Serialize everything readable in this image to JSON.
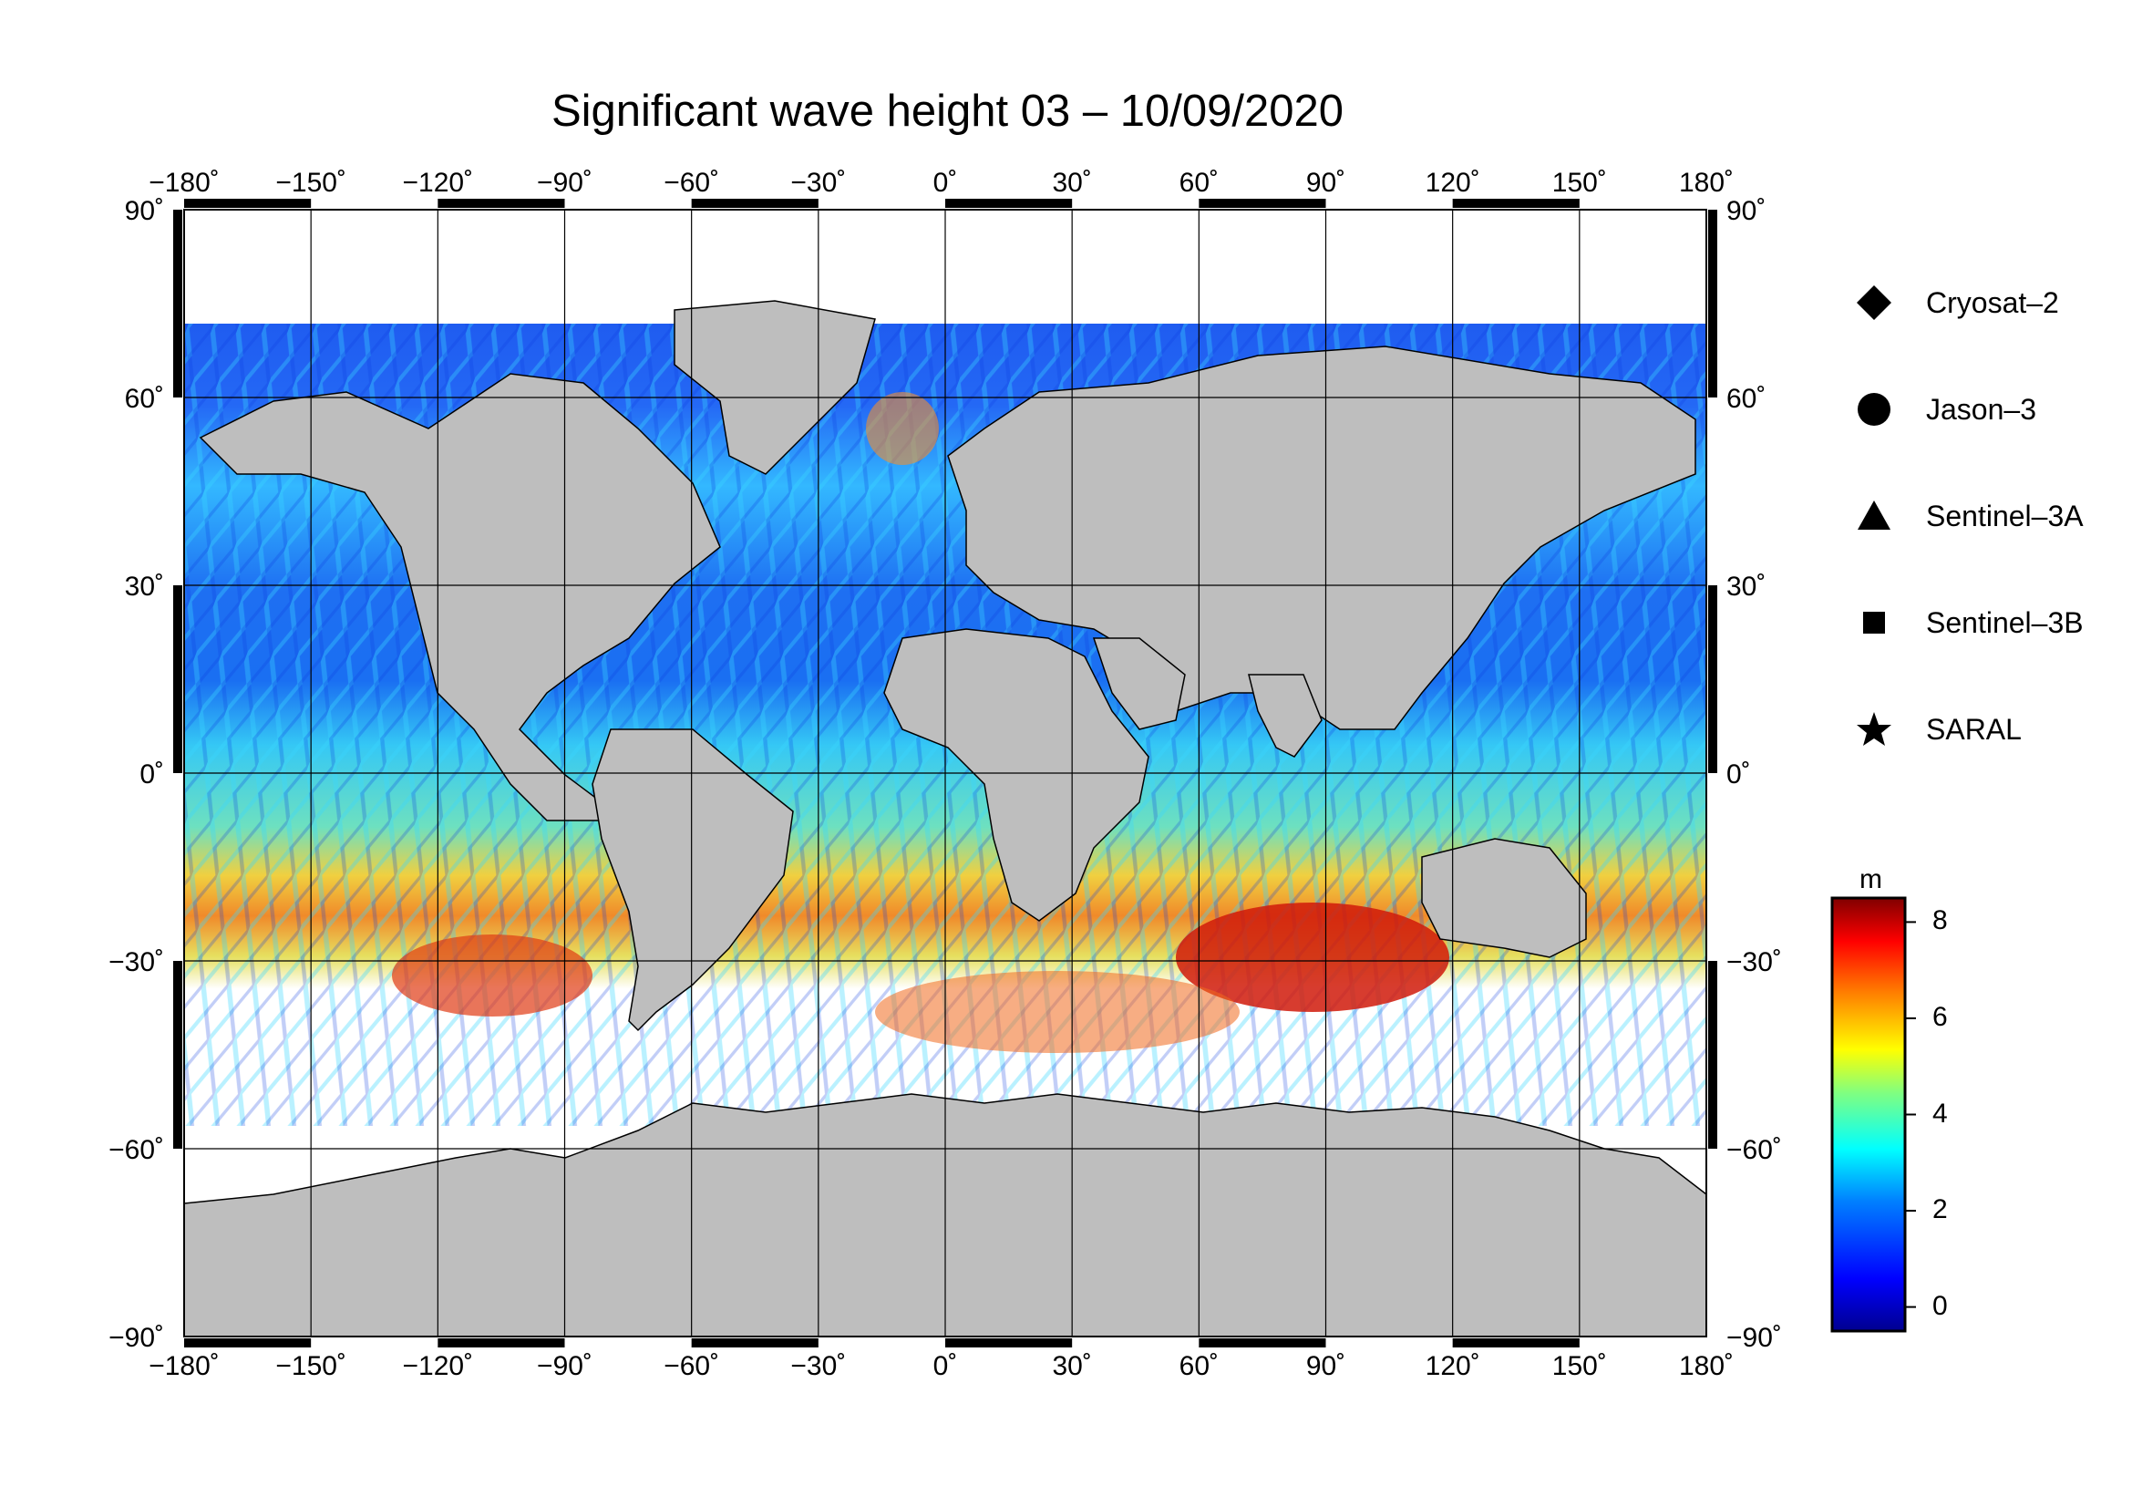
{
  "title": "Significant wave height 03 – 10/09/2020",
  "map": {
    "projection": "equirectangular",
    "lon_range": [
      -180,
      180
    ],
    "lat_range": [
      -90,
      90
    ],
    "grid": true,
    "lon_ticks": [
      "−180˚",
      "−150˚",
      "−120˚",
      "−90˚",
      "−60˚",
      "−30˚",
      "0˚",
      "30˚",
      "60˚",
      "90˚",
      "120˚",
      "150˚",
      "180˚"
    ],
    "lat_ticks": [
      "90˚",
      "60˚",
      "30˚",
      "0˚",
      "−30˚",
      "−60˚",
      "−90˚"
    ],
    "land_color": "#bebebe",
    "ice_color": "#ffffff"
  },
  "legend": {
    "items": [
      {
        "label": "Cryosat–2",
        "symbol": "diamond"
      },
      {
        "label": "Jason–3",
        "symbol": "circle"
      },
      {
        "label": "Sentinel–3A",
        "symbol": "triangle"
      },
      {
        "label": "Sentinel–3B",
        "symbol": "square"
      },
      {
        "label": "SARAL",
        "symbol": "star"
      }
    ]
  },
  "colorbar": {
    "unit": "m",
    "min": -0.5,
    "max": 8.5,
    "ticks": [
      {
        "value": 8,
        "label": "8"
      },
      {
        "value": 6,
        "label": "6"
      },
      {
        "value": 4,
        "label": "4"
      },
      {
        "value": 2,
        "label": "2"
      },
      {
        "value": 0,
        "label": "0"
      }
    ],
    "colormap": [
      "#00008f",
      "#0000ff",
      "#0080ff",
      "#00ffff",
      "#80ff80",
      "#ffff00",
      "#ff8000",
      "#ff0000",
      "#800000"
    ]
  }
}
